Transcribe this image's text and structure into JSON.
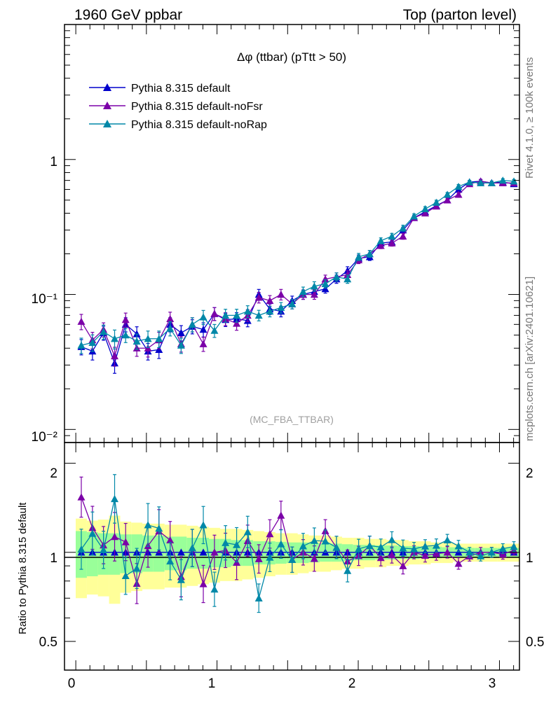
{
  "header": {
    "left": "1960 GeV ppbar",
    "right": "Top (parton level)"
  },
  "title": "Δφ (ttbar) (pTtt > 50)",
  "watermark": "(MC_FBA_TTBAR)",
  "side_labels": {
    "rivet": "Rivet 4.1.0, ≥ 100k events",
    "mcplots": "mcplots.cern.ch [arXiv:2401.10621]"
  },
  "ratio_ylabel": "Ratio to Pythia 8.315 default",
  "legend": [
    {
      "name": "Pythia 8.315 default",
      "color": "#0000cc"
    },
    {
      "name": "Pythia 8.315 default-noFsr",
      "color": "#7b00a8"
    },
    {
      "name": "Pythia 8.315 default-noRap",
      "color": "#0088a8"
    }
  ],
  "axes": {
    "main_y_ticks": [
      "10⁻²",
      "10⁻¹",
      "1"
    ],
    "ratio_y_ticks": [
      "0.5",
      "1",
      "2"
    ],
    "x_ticks": [
      "0",
      "1",
      "2",
      "3"
    ]
  },
  "chart_data": {
    "type": "line",
    "x": [
      0.039,
      0.118,
      0.196,
      0.275,
      0.353,
      0.432,
      0.511,
      0.589,
      0.668,
      0.746,
      0.825,
      0.903,
      0.982,
      1.06,
      1.139,
      1.217,
      1.296,
      1.374,
      1.453,
      1.532,
      1.61,
      1.689,
      1.767,
      1.846,
      1.924,
      2.003,
      2.081,
      2.16,
      2.238,
      2.317,
      2.395,
      2.474,
      2.553,
      2.631,
      2.71,
      2.788,
      2.867,
      2.945,
      3.024,
      3.102
    ],
    "xlim": [
      -0.08,
      3.14159
    ],
    "ylim_main": [
      0.008,
      10
    ],
    "ylim_ratio": [
      0.4,
      2.35
    ],
    "main_scale": "log",
    "ratio_scale": "log",
    "series": [
      {
        "name": "Pythia 8.315 default",
        "values": [
          0.041,
          0.038,
          0.052,
          0.031,
          0.06,
          0.051,
          0.038,
          0.039,
          0.06,
          0.052,
          0.058,
          0.055,
          0.072,
          0.065,
          0.066,
          0.064,
          0.1,
          0.078,
          0.075,
          0.09,
          0.1,
          0.105,
          0.11,
          0.13,
          0.15,
          0.185,
          0.19,
          0.24,
          0.245,
          0.3,
          0.37,
          0.41,
          0.455,
          0.5,
          0.6,
          0.68,
          0.69,
          0.67,
          0.68,
          0.66
        ]
      },
      {
        "name": "Pythia 8.315 default-noFsr",
        "values": [
          0.063,
          0.046,
          0.055,
          0.035,
          0.065,
          0.04,
          0.04,
          0.046,
          0.066,
          0.043,
          0.06,
          0.043,
          0.072,
          0.066,
          0.061,
          0.07,
          0.095,
          0.09,
          0.1,
          0.085,
          0.1,
          0.1,
          0.13,
          0.135,
          0.14,
          0.18,
          0.2,
          0.23,
          0.24,
          0.27,
          0.37,
          0.4,
          0.45,
          0.5,
          0.55,
          0.66,
          0.69,
          0.67,
          0.67,
          0.67
        ]
      },
      {
        "name": "Pythia 8.315 default-noRap",
        "values": [
          0.042,
          0.044,
          0.053,
          0.047,
          0.05,
          0.045,
          0.047,
          0.047,
          0.056,
          0.042,
          0.06,
          0.068,
          0.054,
          0.07,
          0.07,
          0.075,
          0.07,
          0.075,
          0.08,
          0.085,
          0.105,
          0.115,
          0.12,
          0.135,
          0.13,
          0.19,
          0.2,
          0.25,
          0.27,
          0.31,
          0.38,
          0.43,
          0.48,
          0.55,
          0.63,
          0.68,
          0.67,
          0.67,
          0.7,
          0.69
        ]
      }
    ],
    "ratio_band_inner": [
      0.18,
      0.17,
      0.16,
      0.16,
      0.15,
      0.15,
      0.14,
      0.14,
      0.13,
      0.13,
      0.12,
      0.12,
      0.11,
      0.11,
      0.1,
      0.1,
      0.09,
      0.09,
      0.085,
      0.08,
      0.08,
      0.075,
      0.07,
      0.07,
      0.065,
      0.06,
      0.06,
      0.055,
      0.055,
      0.05,
      0.05,
      0.045,
      0.045,
      0.04,
      0.04,
      0.035,
      0.035,
      0.035,
      0.035,
      0.035
    ],
    "ratio_band_outer": [
      0.3,
      0.28,
      0.29,
      0.33,
      0.27,
      0.26,
      0.25,
      0.25,
      0.24,
      0.24,
      0.23,
      0.22,
      0.21,
      0.2,
      0.2,
      0.19,
      0.18,
      0.17,
      0.16,
      0.16,
      0.15,
      0.14,
      0.14,
      0.13,
      0.12,
      0.12,
      0.11,
      0.11,
      0.1,
      0.1,
      0.09,
      0.09,
      0.08,
      0.08,
      0.07,
      0.07,
      0.07,
      0.07,
      0.07,
      0.07
    ],
    "rel_error": [
      0.13,
      0.14,
      0.12,
      0.16,
      0.12,
      0.13,
      0.14,
      0.14,
      0.12,
      0.13,
      0.12,
      0.12,
      0.11,
      0.11,
      0.11,
      0.1,
      0.09,
      0.09,
      0.09,
      0.08,
      0.08,
      0.08,
      0.07,
      0.07,
      0.07,
      0.06,
      0.06,
      0.05,
      0.05,
      0.05,
      0.04,
      0.04,
      0.04,
      0.035,
      0.035,
      0.03,
      0.03,
      0.03,
      0.03,
      0.03
    ]
  }
}
